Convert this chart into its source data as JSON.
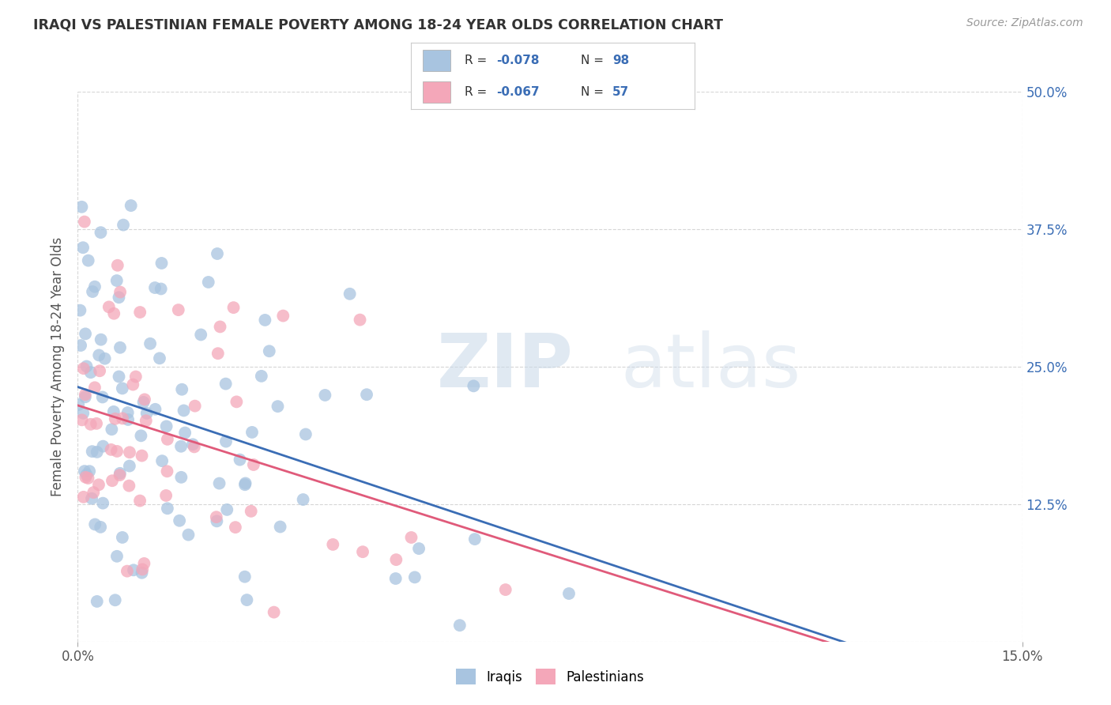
{
  "title": "IRAQI VS PALESTINIAN FEMALE POVERTY AMONG 18-24 YEAR OLDS CORRELATION CHART",
  "source": "Source: ZipAtlas.com",
  "ylabel": "Female Poverty Among 18-24 Year Olds",
  "ytick_values": [
    0.0,
    0.125,
    0.25,
    0.375,
    0.5
  ],
  "ytick_labels": [
    "",
    "12.5%",
    "25.0%",
    "37.5%",
    "50.0%"
  ],
  "xmin": 0.0,
  "xmax": 0.15,
  "ymin": 0.0,
  "ymax": 0.5,
  "iraqis_color": "#a8c4e0",
  "palestinians_color": "#f4a7b9",
  "iraqis_line_color": "#3a6db5",
  "palestinians_line_color": "#e05a7a",
  "iraqis_R": -0.078,
  "iraqis_N": 98,
  "palestinians_R": -0.067,
  "palestinians_N": 57,
  "legend_label_iraqis": "Iraqis",
  "legend_label_palestinians": "Palestinians",
  "watermark_zip": "ZIP",
  "watermark_atlas": "atlas",
  "background_color": "#ffffff",
  "grid_color": "#cccccc",
  "title_color": "#333333",
  "right_ytick_color": "#3a6db5",
  "legend_text_color": "#3a6db5"
}
